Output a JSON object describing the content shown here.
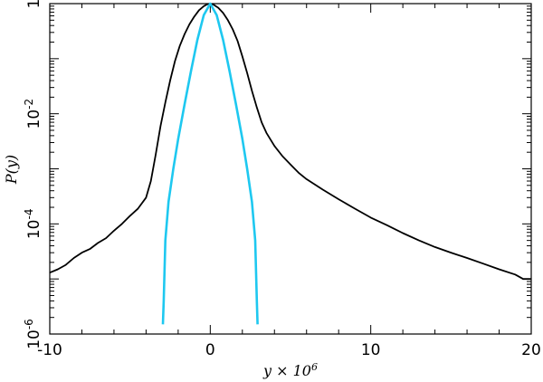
{
  "chart_data": {
    "type": "line",
    "xlabel": "y × 10^6",
    "ylabel": "P(y)",
    "xlim": [
      -10,
      20
    ],
    "ylim": [
      1e-06,
      1
    ],
    "yscale": "log",
    "grid": false,
    "x_ticks": [
      {
        "value": -10,
        "label": "-10"
      },
      {
        "value": 0,
        "label": "0"
      },
      {
        "value": 10,
        "label": "10"
      },
      {
        "value": 20,
        "label": "20"
      }
    ],
    "y_ticks": [
      {
        "value": 1e-06,
        "label": "10-6",
        "base": "10",
        "exp": "-6"
      },
      {
        "value": 0.0001,
        "label": "10-4",
        "base": "10",
        "exp": "-4"
      },
      {
        "value": 0.01,
        "label": "10-2",
        "base": "10",
        "exp": "-2"
      },
      {
        "value": 1,
        "label": "1",
        "base": "1",
        "exp": ""
      }
    ],
    "series": [
      {
        "color": "#000000",
        "x": [
          -10,
          -9.5,
          -9,
          -8.5,
          -8,
          -7.5,
          -7,
          -6.5,
          -6,
          -5.5,
          -5,
          -4.5,
          -4,
          -3.7,
          -3.4,
          -3.1,
          -2.8,
          -2.5,
          -2.2,
          -1.9,
          -1.6,
          -1.3,
          -1,
          -0.7,
          -0.4,
          -0.2,
          0,
          0.2,
          0.5,
          0.8,
          1.1,
          1.4,
          1.7,
          2,
          2.3,
          2.6,
          2.9,
          3.2,
          3.5,
          4,
          4.5,
          5,
          5.5,
          6,
          7,
          8,
          9,
          10,
          11,
          12,
          13,
          14,
          15,
          16,
          17,
          18,
          19,
          19.5,
          20
        ],
        "y": [
          1.3e-05,
          1.5e-05,
          1.8e-05,
          2.4e-05,
          3e-05,
          3.5e-05,
          4.5e-05,
          5.5e-05,
          7.5e-05,
          0.0001,
          0.00014,
          0.00019,
          0.0003,
          0.0006,
          0.0018,
          0.006,
          0.016,
          0.04,
          0.09,
          0.17,
          0.28,
          0.42,
          0.58,
          0.76,
          0.9,
          0.97,
          1.0,
          0.96,
          0.84,
          0.68,
          0.5,
          0.34,
          0.21,
          0.11,
          0.055,
          0.026,
          0.013,
          0.007,
          0.0045,
          0.0026,
          0.0017,
          0.0012,
          0.00085,
          0.00065,
          0.00042,
          0.00028,
          0.00019,
          0.00013,
          9.5e-05,
          6.8e-05,
          5e-05,
          3.8e-05,
          3e-05,
          2.4e-05,
          1.9e-05,
          1.5e-05,
          1.2e-05,
          1e-05,
          1e-05
        ]
      },
      {
        "color": "#1ec8f0",
        "x": [
          -2.95,
          -2.9,
          -2.8,
          -2.6,
          -2.3,
          -2.0,
          -1.6,
          -1.2,
          -0.8,
          -0.4,
          0,
          0.4,
          0.8,
          1.2,
          1.6,
          2.0,
          2.3,
          2.6,
          2.8,
          2.9,
          2.95
        ],
        "y": [
          1.5e-06,
          4e-06,
          5e-05,
          0.00025,
          0.001,
          0.0035,
          0.015,
          0.06,
          0.22,
          0.62,
          1.0,
          0.62,
          0.22,
          0.06,
          0.015,
          0.0035,
          0.001,
          0.00025,
          5e-05,
          4e-06,
          1.5e-06
        ]
      }
    ]
  }
}
